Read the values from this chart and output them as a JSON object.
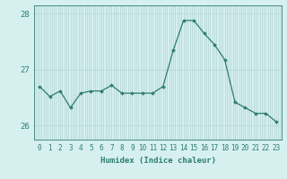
{
  "x": [
    0,
    1,
    2,
    3,
    4,
    5,
    6,
    7,
    8,
    9,
    10,
    11,
    12,
    13,
    14,
    15,
    16,
    17,
    18,
    19,
    20,
    21,
    22,
    23
  ],
  "y": [
    26.7,
    26.52,
    26.62,
    26.32,
    26.58,
    26.62,
    26.62,
    26.72,
    26.58,
    26.58,
    26.58,
    26.58,
    26.7,
    27.35,
    27.88,
    27.88,
    27.65,
    27.45,
    27.18,
    26.42,
    26.32,
    26.22,
    26.22,
    26.07
  ],
  "line_color": "#2e7d6e",
  "marker": "D",
  "marker_size": 1.8,
  "bg_color": "#d6f0f0",
  "grid_color": "#b8d8d8",
  "axis_color": "#2e7d6e",
  "tick_color": "#2e7d6e",
  "xlabel": "Humidex (Indice chaleur)",
  "ylim": [
    25.75,
    28.15
  ],
  "yticks": [
    26,
    27,
    28
  ],
  "ytick_labels": [
    "26",
    "27",
    "28"
  ],
  "xticks": [
    0,
    1,
    2,
    3,
    4,
    5,
    6,
    7,
    8,
    9,
    10,
    11,
    12,
    13,
    14,
    15,
    16,
    17,
    18,
    19,
    20,
    21,
    22,
    23
  ],
  "xlabel_fontsize": 6.5,
  "tick_fontsize": 5.5,
  "ytick_fontsize": 6.5
}
